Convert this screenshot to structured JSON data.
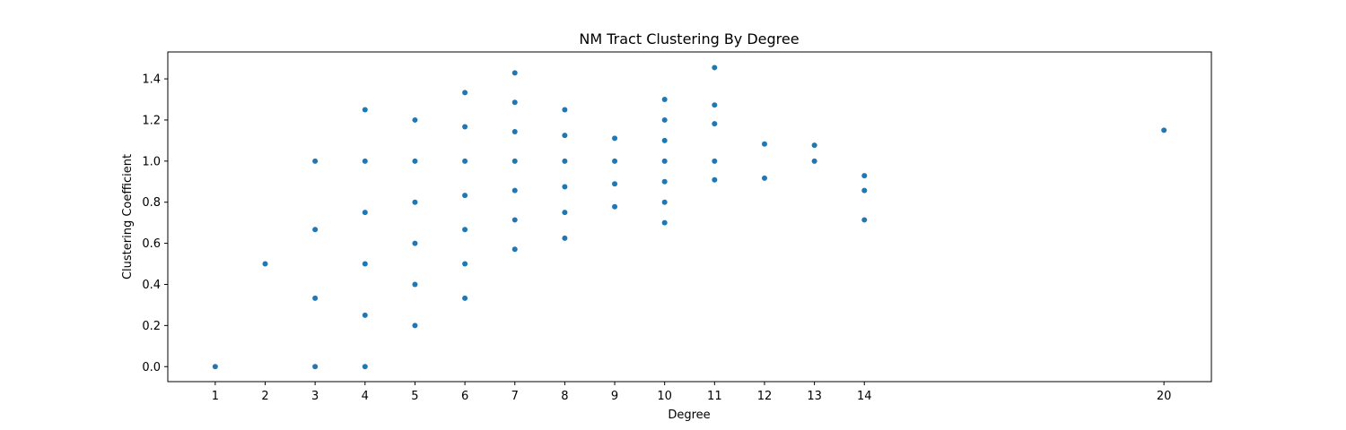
{
  "chart_data": {
    "type": "scatter",
    "title": "NM Tract Clustering By Degree",
    "xlabel": "Degree",
    "ylabel": "Clustering Coefficient",
    "xlim": [
      0.05,
      20.95
    ],
    "ylim": [
      -0.073,
      1.531
    ],
    "x_ticks": [
      1,
      2,
      3,
      4,
      5,
      6,
      7,
      8,
      9,
      10,
      11,
      12,
      13,
      14,
      20
    ],
    "y_ticks": [
      0.0,
      0.2,
      0.4,
      0.6,
      0.8,
      1.0,
      1.2,
      1.4
    ],
    "y_tick_labels": [
      "0.0",
      "0.2",
      "0.4",
      "0.6",
      "0.8",
      "1.0",
      "1.2",
      "1.4"
    ],
    "grid": false,
    "marker_color": "#1f77b4",
    "points": [
      [
        1,
        0.0
      ],
      [
        2,
        0.5
      ],
      [
        3,
        0.0
      ],
      [
        3,
        0.333
      ],
      [
        3,
        0.667
      ],
      [
        3,
        1.0
      ],
      [
        4,
        0.0
      ],
      [
        4,
        0.25
      ],
      [
        4,
        0.5
      ],
      [
        4,
        0.75
      ],
      [
        4,
        1.0
      ],
      [
        4,
        1.25
      ],
      [
        5,
        0.2
      ],
      [
        5,
        0.4
      ],
      [
        5,
        0.6
      ],
      [
        5,
        0.8
      ],
      [
        5,
        1.0
      ],
      [
        5,
        1.2
      ],
      [
        6,
        0.333
      ],
      [
        6,
        0.5
      ],
      [
        6,
        0.667
      ],
      [
        6,
        0.833
      ],
      [
        6,
        1.0
      ],
      [
        6,
        1.167
      ],
      [
        6,
        1.333
      ],
      [
        7,
        0.571
      ],
      [
        7,
        0.714
      ],
      [
        7,
        0.857
      ],
      [
        7,
        1.0
      ],
      [
        7,
        1.143
      ],
      [
        7,
        1.286
      ],
      [
        7,
        1.429
      ],
      [
        8,
        0.625
      ],
      [
        8,
        0.75
      ],
      [
        8,
        0.875
      ],
      [
        8,
        1.0
      ],
      [
        8,
        1.125
      ],
      [
        8,
        1.25
      ],
      [
        9,
        0.778
      ],
      [
        9,
        0.889
      ],
      [
        9,
        1.0
      ],
      [
        9,
        1.111
      ],
      [
        10,
        0.7
      ],
      [
        10,
        0.8
      ],
      [
        10,
        0.9
      ],
      [
        10,
        1.0
      ],
      [
        10,
        1.1
      ],
      [
        10,
        1.2
      ],
      [
        10,
        1.3
      ],
      [
        11,
        0.909
      ],
      [
        11,
        1.0
      ],
      [
        11,
        1.182
      ],
      [
        11,
        1.273
      ],
      [
        11,
        1.455
      ],
      [
        12,
        0.917
      ],
      [
        12,
        1.083
      ],
      [
        13,
        1.0
      ],
      [
        13,
        1.077
      ],
      [
        14,
        0.714
      ],
      [
        14,
        0.857
      ],
      [
        14,
        0.929
      ],
      [
        20,
        1.15
      ]
    ]
  }
}
